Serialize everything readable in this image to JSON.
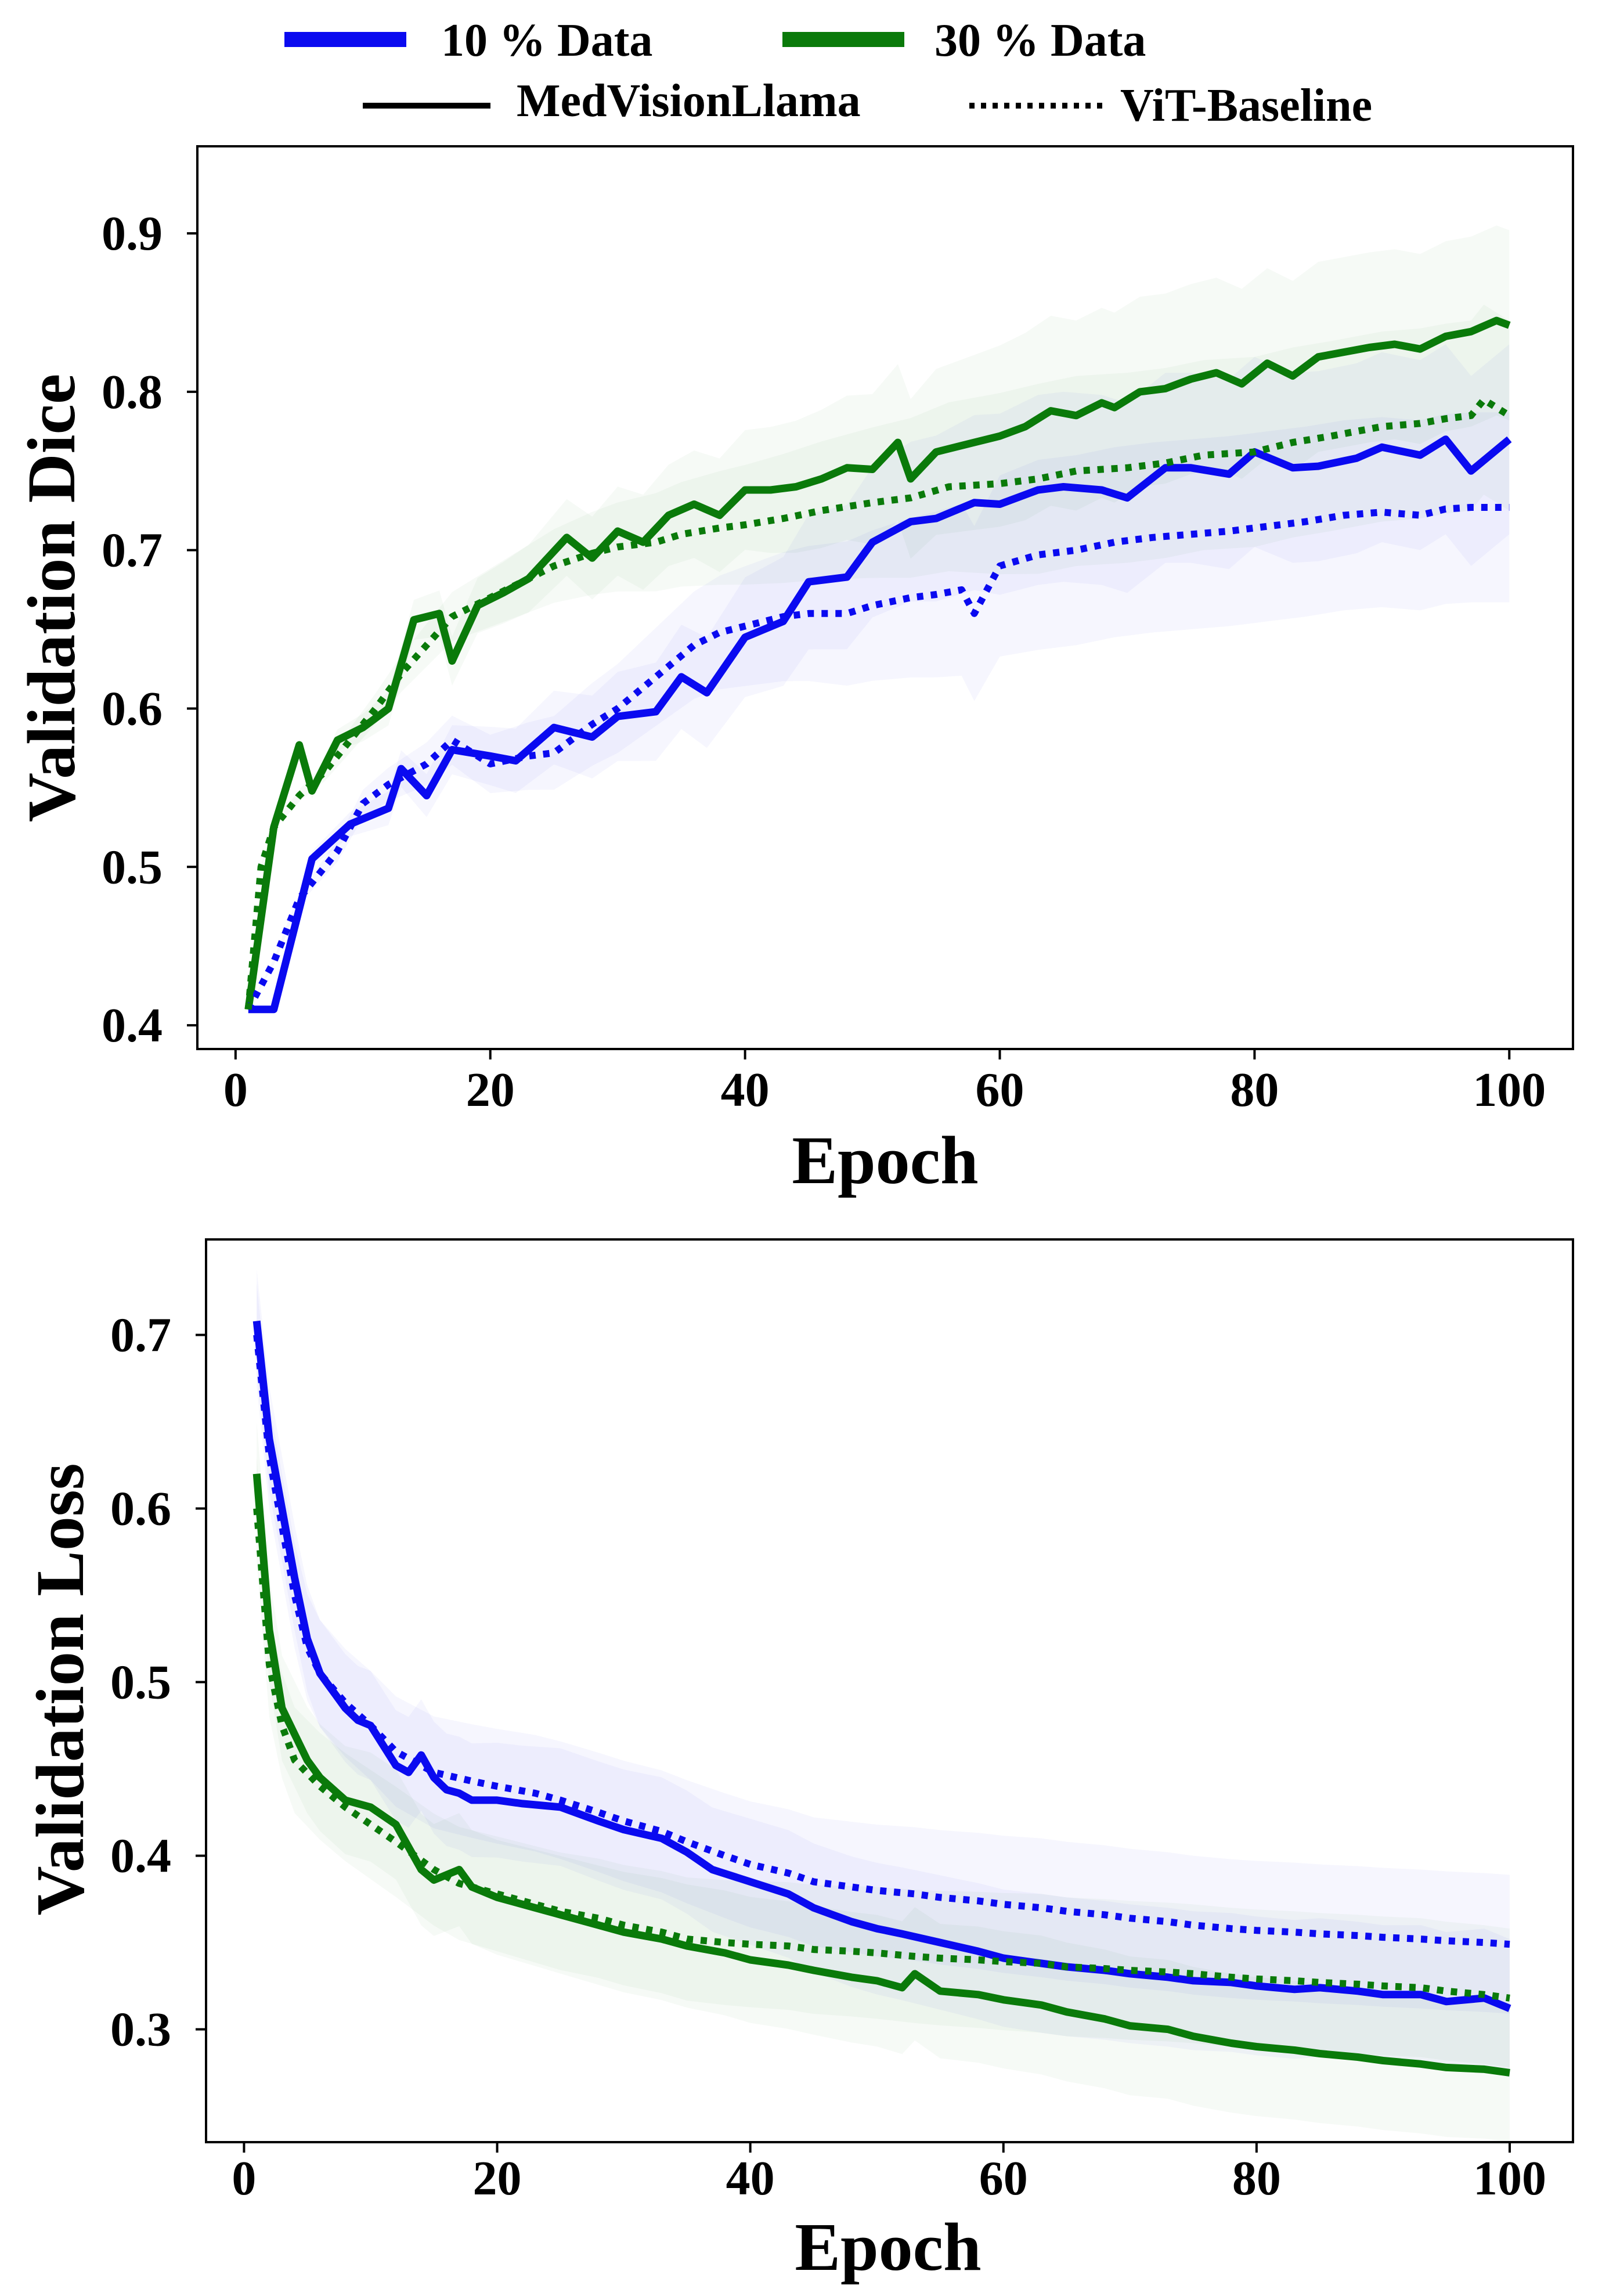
{
  "legend": {
    "colors": [
      {
        "label": "10 % Data",
        "color": "#0a0af0"
      },
      {
        "label": "30 % Data",
        "color": "#0a7a0a"
      }
    ],
    "styles": [
      {
        "label": "MedVisionLlama",
        "dash": "solid"
      },
      {
        "label": "ViT-Baseline",
        "dash": "dotted"
      }
    ]
  },
  "chart_data": [
    {
      "type": "line",
      "title": "",
      "xlabel": "Epoch",
      "ylabel": "Validation Dice",
      "xlim": [
        -3,
        105
      ],
      "ylim": [
        0.385,
        0.955
      ],
      "xticks": [
        0,
        20,
        40,
        60,
        80,
        100
      ],
      "yticks": [
        0.4,
        0.5,
        0.6,
        0.7,
        0.8,
        0.9
      ],
      "ytick_labels": [
        "0.4",
        "0.5",
        "0.6",
        "0.7",
        "0.8",
        "0.9"
      ],
      "band_spread": {
        "start": 0.0,
        "end": 0.06
      },
      "series": [
        {
          "name": "MedVisionLlama (10 % Data)",
          "color": "#0a0af0",
          "dash": "solid",
          "x": [
            1,
            3,
            6,
            9,
            12,
            13,
            15,
            17,
            20,
            22,
            25,
            28,
            30,
            33,
            35,
            37,
            40,
            43,
            45,
            48,
            50,
            53,
            55,
            58,
            60,
            63,
            65,
            68,
            70,
            73,
            75,
            78,
            80,
            83,
            85,
            88,
            90,
            93,
            95,
            97,
            100
          ],
          "y": [
            0.41,
            0.41,
            0.505,
            0.527,
            0.537,
            0.562,
            0.545,
            0.574,
            0.57,
            0.567,
            0.588,
            0.582,
            0.595,
            0.598,
            0.62,
            0.61,
            0.645,
            0.655,
            0.68,
            0.683,
            0.705,
            0.718,
            0.72,
            0.73,
            0.729,
            0.738,
            0.74,
            0.738,
            0.733,
            0.752,
            0.752,
            0.748,
            0.762,
            0.752,
            0.753,
            0.758,
            0.765,
            0.76,
            0.77,
            0.75,
            0.77
          ]
        },
        {
          "name": "MedVisionLlama (30 % Data)",
          "color": "#0a7a0a",
          "dash": "solid",
          "x": [
            1,
            3,
            5,
            6,
            8,
            10,
            12,
            14,
            16,
            17,
            19,
            21,
            23,
            26,
            28,
            30,
            32,
            34,
            36,
            38,
            40,
            42,
            44,
            46,
            48,
            50,
            52,
            53,
            55,
            58,
            60,
            62,
            64,
            66,
            68,
            69,
            71,
            73,
            75,
            77,
            79,
            81,
            83,
            85,
            87,
            89,
            91,
            93,
            95,
            97,
            99,
            100
          ],
          "y": [
            0.41,
            0.525,
            0.577,
            0.548,
            0.58,
            0.588,
            0.6,
            0.656,
            0.66,
            0.63,
            0.665,
            0.673,
            0.682,
            0.708,
            0.695,
            0.712,
            0.705,
            0.722,
            0.729,
            0.722,
            0.738,
            0.738,
            0.74,
            0.745,
            0.752,
            0.751,
            0.768,
            0.745,
            0.762,
            0.768,
            0.772,
            0.778,
            0.788,
            0.785,
            0.793,
            0.79,
            0.8,
            0.802,
            0.808,
            0.812,
            0.805,
            0.818,
            0.81,
            0.822,
            0.825,
            0.828,
            0.83,
            0.827,
            0.835,
            0.838,
            0.845,
            0.842
          ]
        },
        {
          "name": "ViT-Baseline (10 % Data)",
          "color": "#0a0af0",
          "dash": "dotted",
          "x": [
            1,
            3,
            5,
            8,
            10,
            12,
            15,
            17,
            20,
            23,
            25,
            28,
            30,
            33,
            36,
            38,
            40,
            43,
            45,
            48,
            50,
            53,
            55,
            57,
            58,
            60,
            63,
            66,
            69,
            72,
            75,
            78,
            81,
            84,
            87,
            90,
            93,
            95,
            97,
            100
          ],
          "y": [
            0.41,
            0.44,
            0.48,
            0.51,
            0.54,
            0.552,
            0.565,
            0.58,
            0.565,
            0.57,
            0.572,
            0.59,
            0.6,
            0.62,
            0.64,
            0.648,
            0.652,
            0.658,
            0.66,
            0.66,
            0.665,
            0.67,
            0.672,
            0.675,
            0.66,
            0.69,
            0.697,
            0.7,
            0.705,
            0.708,
            0.71,
            0.712,
            0.715,
            0.718,
            0.722,
            0.724,
            0.722,
            0.726,
            0.727,
            0.727
          ]
        },
        {
          "name": "ViT-Baseline (30 % Data)",
          "color": "#0a7a0a",
          "dash": "dotted",
          "x": [
            1,
            2,
            3,
            5,
            7,
            9,
            11,
            13,
            15,
            17,
            20,
            23,
            25,
            28,
            30,
            33,
            35,
            38,
            40,
            43,
            46,
            50,
            53,
            56,
            60,
            63,
            66,
            70,
            73,
            76,
            80,
            83,
            86,
            90,
            93,
            95,
            97,
            98,
            100
          ],
          "y": [
            0.41,
            0.5,
            0.525,
            0.545,
            0.56,
            0.58,
            0.6,
            0.622,
            0.64,
            0.658,
            0.67,
            0.682,
            0.69,
            0.698,
            0.702,
            0.705,
            0.71,
            0.714,
            0.716,
            0.72,
            0.725,
            0.73,
            0.733,
            0.74,
            0.742,
            0.745,
            0.75,
            0.752,
            0.755,
            0.76,
            0.762,
            0.768,
            0.772,
            0.778,
            0.78,
            0.783,
            0.785,
            0.795,
            0.785
          ]
        }
      ]
    },
    {
      "type": "line",
      "title": "",
      "xlabel": "Epoch",
      "ylabel": "Validation Loss",
      "xlim": [
        -3,
        105
      ],
      "ylim": [
        0.235,
        0.755
      ],
      "xticks": [
        0,
        20,
        40,
        60,
        80,
        100
      ],
      "yticks": [
        0.3,
        0.4,
        0.5,
        0.6,
        0.7
      ],
      "ytick_labels": [
        "0.3",
        "0.4",
        "0.5",
        "0.6",
        "0.7"
      ],
      "band_spread": {
        "start": 0.03,
        "end": 0.04
      },
      "series": [
        {
          "name": "MedVisionLlama (10 % Data)",
          "color": "#0a0af0",
          "dash": "solid",
          "x": [
            1,
            2,
            3,
            4,
            5,
            6,
            7,
            8,
            9,
            10,
            12,
            13,
            14,
            15,
            16,
            17,
            18,
            20,
            22,
            25,
            28,
            30,
            33,
            35,
            37,
            40,
            43,
            45,
            48,
            50,
            52,
            55,
            58,
            60,
            63,
            65,
            68,
            70,
            73,
            75,
            78,
            80,
            83,
            85,
            88,
            90,
            93,
            95,
            98,
            100
          ],
          "y": [
            0.708,
            0.64,
            0.6,
            0.56,
            0.525,
            0.505,
            0.495,
            0.485,
            0.478,
            0.475,
            0.452,
            0.448,
            0.458,
            0.445,
            0.438,
            0.436,
            0.432,
            0.432,
            0.43,
            0.428,
            0.42,
            0.415,
            0.41,
            0.402,
            0.392,
            0.385,
            0.378,
            0.37,
            0.362,
            0.358,
            0.355,
            0.35,
            0.345,
            0.341,
            0.338,
            0.336,
            0.334,
            0.332,
            0.33,
            0.328,
            0.327,
            0.325,
            0.323,
            0.324,
            0.322,
            0.32,
            0.32,
            0.316,
            0.318,
            0.312
          ]
        },
        {
          "name": "MedVisionLlama (30 % Data)",
          "color": "#0a7a0a",
          "dash": "solid",
          "x": [
            1,
            2,
            3,
            4,
            5,
            6,
            8,
            10,
            12,
            14,
            15,
            17,
            18,
            20,
            23,
            25,
            28,
            30,
            33,
            35,
            38,
            40,
            43,
            45,
            48,
            50,
            52,
            53,
            55,
            58,
            60,
            63,
            65,
            68,
            70,
            73,
            75,
            78,
            80,
            83,
            85,
            88,
            90,
            93,
            95,
            98,
            100
          ],
          "y": [
            0.62,
            0.53,
            0.485,
            0.47,
            0.455,
            0.445,
            0.432,
            0.428,
            0.418,
            0.392,
            0.386,
            0.392,
            0.382,
            0.376,
            0.37,
            0.366,
            0.36,
            0.356,
            0.352,
            0.348,
            0.344,
            0.34,
            0.337,
            0.334,
            0.33,
            0.328,
            0.324,
            0.332,
            0.322,
            0.32,
            0.317,
            0.314,
            0.31,
            0.306,
            0.302,
            0.3,
            0.296,
            0.292,
            0.29,
            0.288,
            0.286,
            0.284,
            0.282,
            0.28,
            0.278,
            0.277,
            0.275
          ]
        },
        {
          "name": "ViT-Baseline (10 % Data)",
          "color": "#0a0af0",
          "dash": "dotted",
          "x": [
            1,
            2,
            3,
            4,
            5,
            6,
            8,
            10,
            12,
            15,
            18,
            20,
            23,
            25,
            28,
            30,
            33,
            35,
            38,
            40,
            43,
            45,
            48,
            50,
            53,
            55,
            58,
            60,
            63,
            65,
            68,
            70,
            73,
            75,
            78,
            80,
            83,
            85,
            88,
            90,
            93,
            95,
            98,
            100
          ],
          "y": [
            0.7,
            0.63,
            0.59,
            0.55,
            0.52,
            0.505,
            0.488,
            0.475,
            0.46,
            0.448,
            0.443,
            0.44,
            0.436,
            0.432,
            0.425,
            0.42,
            0.414,
            0.408,
            0.4,
            0.395,
            0.39,
            0.385,
            0.382,
            0.38,
            0.378,
            0.376,
            0.374,
            0.372,
            0.37,
            0.368,
            0.366,
            0.364,
            0.362,
            0.36,
            0.358,
            0.357,
            0.356,
            0.355,
            0.354,
            0.353,
            0.352,
            0.351,
            0.35,
            0.349
          ]
        },
        {
          "name": "ViT-Baseline (30 % Data)",
          "color": "#0a7a0a",
          "dash": "dotted",
          "x": [
            1,
            2,
            3,
            4,
            6,
            8,
            10,
            12,
            15,
            17,
            20,
            23,
            25,
            28,
            30,
            33,
            35,
            38,
            40,
            43,
            45,
            48,
            50,
            53,
            55,
            58,
            60,
            63,
            65,
            68,
            70,
            73,
            75,
            78,
            80,
            83,
            85,
            88,
            90,
            93,
            95,
            98,
            100
          ],
          "y": [
            0.6,
            0.51,
            0.475,
            0.455,
            0.44,
            0.428,
            0.418,
            0.408,
            0.392,
            0.384,
            0.378,
            0.372,
            0.368,
            0.364,
            0.36,
            0.356,
            0.352,
            0.35,
            0.349,
            0.348,
            0.346,
            0.345,
            0.344,
            0.342,
            0.341,
            0.34,
            0.339,
            0.338,
            0.336,
            0.335,
            0.334,
            0.333,
            0.332,
            0.33,
            0.329,
            0.328,
            0.327,
            0.326,
            0.325,
            0.324,
            0.322,
            0.32,
            0.318
          ]
        }
      ]
    }
  ]
}
